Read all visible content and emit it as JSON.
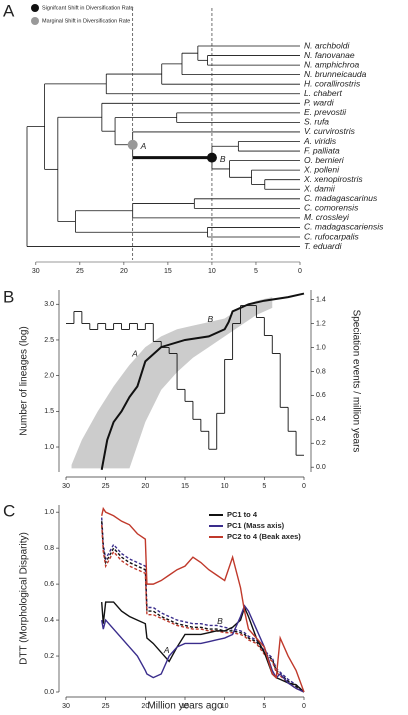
{
  "chart_data": [
    {
      "type": "tree",
      "panel_label": "A",
      "legend": [
        {
          "name": "Signifcant Shift in Diversification Rate",
          "color": "#111111"
        },
        {
          "name": "Marginal Shift in Diversification Rate",
          "color": "#999999"
        }
      ],
      "xlim": [
        31,
        0
      ],
      "xticks": [
        30,
        25,
        20,
        15,
        10,
        5,
        0
      ],
      "vlines": [
        19,
        10
      ],
      "tree": {
        "age": 31,
        "children": [
          {
            "age": 29,
            "children": [
              {
                "age": 22,
                "children": [
                  {
                    "age": 15.7,
                    "children": [
                      {
                        "age": 13.4,
                        "children": [
                          {
                            "age": 11.6,
                            "children": [
                              {
                                "name": "N. archboldi",
                                "age": 0
                              },
                              {
                                "age": 10.5,
                                "children": [
                                  {
                                    "name": "N. fanovanae",
                                    "age": 0
                                  },
                                  {
                                    "name": "N. amphichroa",
                                    "age": 0
                                  }
                                ]
                              }
                            ]
                          },
                          {
                            "name": "N. brunneicauda",
                            "age": 0
                          }
                        ]
                      },
                      {
                        "name": "H. corallirostris",
                        "age": 0
                      }
                    ]
                  },
                  {
                    "name": "L. chabert",
                    "age": 0
                  }
                ]
              },
              {
                "age": 27.5,
                "children": [
                  {
                    "age": 22.5,
                    "children": [
                      {
                        "name": "P. wardi",
                        "age": 0
                      },
                      {
                        "age": 21,
                        "children": [
                          {
                            "age": 14,
                            "children": [
                              {
                                "name": "E. prevostii",
                                "age": 0
                              },
                              {
                                "name": "S. rufa",
                                "age": 0
                              }
                            ]
                          },
                          {
                            "age": 19,
                            "shift_label": "A",
                            "shift_color": "#999999",
                            "children": [
                              {
                                "name": "V. curvirostris",
                                "age": 0
                              },
                              {
                                "age": 10,
                                "shift_label": "B",
                                "shift_color": "#111111",
                                "thick_branch": true,
                                "children": [
                                  {
                                    "age": 7,
                                    "children": [
                                      {
                                        "name": "A. viridis",
                                        "age": 0
                                      },
                                      {
                                        "name": "F. palliata",
                                        "age": 0
                                      }
                                    ]
                                  },
                                  {
                                    "age": 8,
                                    "children": [
                                      {
                                        "name": "O. bernieri",
                                        "age": 0
                                      },
                                      {
                                        "age": 5.5,
                                        "children": [
                                          {
                                            "name": "X. polleni",
                                            "age": 0
                                          },
                                          {
                                            "age": 4,
                                            "children": [
                                              {
                                                "name": "X. xenopirostris",
                                                "age": 0
                                              },
                                              {
                                                "name": "X. damii",
                                                "age": 0
                                              }
                                            ]
                                          }
                                        ]
                                      }
                                    ]
                                  }
                                ]
                              }
                            ]
                          }
                        ]
                      }
                    ]
                  },
                  {
                    "age": 25.5,
                    "children": [
                      {
                        "age": 19,
                        "children": [
                          {
                            "age": 12,
                            "children": [
                              {
                                "name": "C. madagascarinus",
                                "age": 0
                              },
                              {
                                "name": "C. comorensis",
                                "age": 0
                              }
                            ]
                          },
                          {
                            "name": "M. crossleyi",
                            "age": 0
                          }
                        ]
                      },
                      {
                        "age": 10.5,
                        "children": [
                          {
                            "name": "C. madagascariensis",
                            "age": 0
                          },
                          {
                            "name": "C. rufocarpalis",
                            "age": 0
                          }
                        ]
                      }
                    ]
                  }
                ]
              }
            ]
          },
          {
            "name": "T. eduardi",
            "age": 0
          }
        ]
      }
    },
    {
      "type": "line",
      "panel_label": "B",
      "ylabel": "Number of lineages (log)",
      "y2label": "Speciation events / million years",
      "xlim": [
        30,
        0
      ],
      "xticks": [
        30,
        25,
        20,
        15,
        10,
        5,
        0
      ],
      "ylim": [
        0.65,
        3.2
      ],
      "yticks": [
        {
          "value": 1,
          "label": "1.0"
        },
        1.5,
        {
          "value": 2,
          "label": "2.0"
        },
        2.5,
        {
          "value": 3,
          "label": "3.0"
        }
      ],
      "y2lim": [
        -0.04,
        1.48
      ],
      "y2ticks": [
        {
          "value": 0,
          "label": "0.0"
        },
        0.2,
        0.4,
        0.6,
        0.8,
        {
          "value": 1,
          "label": "1.0"
        },
        1.2,
        1.4
      ],
      "series": [
        {
          "kind": "band",
          "color": "#cccccc",
          "x": [
            29.3,
            28,
            26,
            24,
            22,
            20,
            18,
            16,
            14,
            12,
            10,
            8,
            6,
            4
          ],
          "upper": [
            0.75,
            1.1,
            1.5,
            1.85,
            2.15,
            2.4,
            2.55,
            2.65,
            2.7,
            2.75,
            2.8,
            2.95,
            3.05,
            3.1
          ],
          "lower": [
            0.7,
            0.7,
            0.7,
            0.7,
            0.7,
            1.35,
            1.8,
            2.05,
            2.25,
            2.4,
            2.55,
            2.7,
            2.85,
            2.95
          ]
        },
        {
          "kind": "step",
          "axis": "y2",
          "color": "#111111",
          "bins": [
            30,
            29,
            28,
            27,
            26,
            25,
            24,
            23,
            22,
            21,
            20,
            19,
            18,
            17,
            16,
            15,
            14,
            13,
            12,
            11,
            10,
            9,
            8,
            7,
            6,
            5,
            4,
            3,
            2,
            1,
            0
          ],
          "values": [
            1.2,
            1.3,
            1.2,
            1.15,
            1.2,
            1.15,
            1.2,
            1.15,
            1.2,
            1.15,
            1.2,
            1.05,
            1.0,
            0.95,
            0.65,
            0.55,
            0.4,
            0.3,
            0.15,
            0.45,
            0.9,
            1.2,
            1.35,
            1.35,
            1.25,
            1.1,
            0.95,
            0.5,
            0.3,
            0.1
          ]
        },
        {
          "kind": "line",
          "color": "#111111",
          "width": 2,
          "x": [
            25.5,
            24.8,
            24,
            23,
            22,
            21,
            20,
            19,
            18,
            15,
            12,
            10,
            9.5,
            9,
            7,
            5,
            2,
            0
          ],
          "values": [
            0.68,
            1.1,
            1.35,
            1.5,
            1.7,
            1.85,
            2.2,
            2.3,
            2.4,
            2.5,
            2.55,
            2.65,
            2.75,
            2.9,
            3.0,
            3.05,
            3.1,
            3.15
          ]
        }
      ],
      "annotations": [
        {
          "text": "A",
          "x": 21.3,
          "y": 2.3
        },
        {
          "text": "B",
          "x": 11.8,
          "y": 2.78
        }
      ]
    },
    {
      "type": "line",
      "panel_label": "C",
      "ylabel": "DTT (Morphological Disparity)",
      "xlabel": "Million years ago",
      "xlim": [
        30,
        0
      ],
      "xticks": [
        30,
        25,
        20,
        15,
        10,
        5,
        0
      ],
      "ylim": [
        0,
        1.04
      ],
      "yticks": [
        {
          "value": 0,
          "label": "0.0"
        },
        0.2,
        0.4,
        0.6,
        0.8,
        {
          "value": 1,
          "label": "1.0"
        }
      ],
      "legend": "upper right",
      "x": [
        25.5,
        25.3,
        25,
        24,
        23,
        22,
        21,
        20,
        19.8,
        19,
        18,
        17,
        16,
        15,
        14,
        13,
        12,
        11,
        10,
        9,
        8,
        7.5,
        7,
        6,
        5,
        4,
        3.5,
        3,
        2,
        1,
        0
      ],
      "series": [
        {
          "kind": "line",
          "color": "#3a2d8c",
          "dashed": true,
          "values": [
            0.97,
            0.82,
            0.74,
            0.82,
            0.77,
            0.74,
            0.72,
            0.7,
            0.47,
            0.47,
            0.44,
            0.42,
            0.4,
            0.39,
            0.38,
            0.38,
            0.37,
            0.37,
            0.36,
            0.35,
            0.34,
            0.33,
            0.31,
            0.29,
            0.23,
            0.19,
            0.13,
            0.11,
            0.07,
            0.04,
            0
          ]
        },
        {
          "kind": "line",
          "color": "#111111",
          "dashed": true,
          "values": [
            0.95,
            0.8,
            0.72,
            0.8,
            0.75,
            0.72,
            0.7,
            0.68,
            0.45,
            0.45,
            0.42,
            0.4,
            0.38,
            0.37,
            0.36,
            0.36,
            0.35,
            0.35,
            0.34,
            0.34,
            0.33,
            0.32,
            0.3,
            0.28,
            0.22,
            0.18,
            0.12,
            0.1,
            0.06,
            0.03,
            0
          ]
        },
        {
          "kind": "line",
          "color": "#c0392b",
          "dashed": true,
          "values": [
            0.93,
            0.78,
            0.7,
            0.78,
            0.73,
            0.7,
            0.68,
            0.66,
            0.43,
            0.43,
            0.41,
            0.39,
            0.37,
            0.36,
            0.35,
            0.35,
            0.34,
            0.34,
            0.33,
            0.33,
            0.32,
            0.31,
            0.29,
            0.27,
            0.21,
            0.17,
            0.11,
            0.09,
            0.05,
            0.02,
            0
          ]
        },
        {
          "kind": "line",
          "name": "PC1 to 4",
          "color": "#111111",
          "values": [
            0.5,
            0.38,
            0.5,
            0.5,
            0.45,
            0.42,
            0.4,
            0.38,
            0.3,
            0.27,
            0.22,
            0.17,
            0.25,
            0.32,
            0.32,
            0.32,
            0.33,
            0.34,
            0.34,
            0.36,
            0.4,
            0.47,
            0.42,
            0.3,
            0.22,
            0.1,
            0.08,
            0.07,
            0.05,
            0.04,
            0
          ]
        },
        {
          "kind": "line",
          "name": "PC1 (Mass axis)",
          "color": "#3a2d8c",
          "values": [
            0.4,
            0.35,
            0.4,
            0.35,
            0.3,
            0.25,
            0.2,
            0.12,
            0.1,
            0.08,
            0.1,
            0.2,
            0.25,
            0.27,
            0.27,
            0.27,
            0.28,
            0.29,
            0.3,
            0.32,
            0.42,
            0.48,
            0.45,
            0.35,
            0.25,
            0.12,
            0.08,
            0.1,
            0.05,
            0.02,
            0
          ]
        },
        {
          "kind": "line",
          "name": "PC2 to 4 (Beak axes)",
          "color": "#c0392b",
          "values": [
            0.98,
            1.02,
            1.0,
            0.98,
            0.95,
            0.93,
            0.88,
            0.85,
            0.6,
            0.6,
            0.62,
            0.65,
            0.68,
            0.7,
            0.75,
            0.72,
            0.68,
            0.65,
            0.62,
            0.75,
            0.58,
            0.45,
            0.35,
            0.3,
            0.25,
            0.1,
            0.08,
            0.3,
            0.2,
            0.12,
            0
          ]
        }
      ],
      "annotations": [
        {
          "text": "A",
          "x": 17.3,
          "y": 0.23
        },
        {
          "text": "B",
          "x": 10.6,
          "y": 0.39
        }
      ]
    }
  ]
}
